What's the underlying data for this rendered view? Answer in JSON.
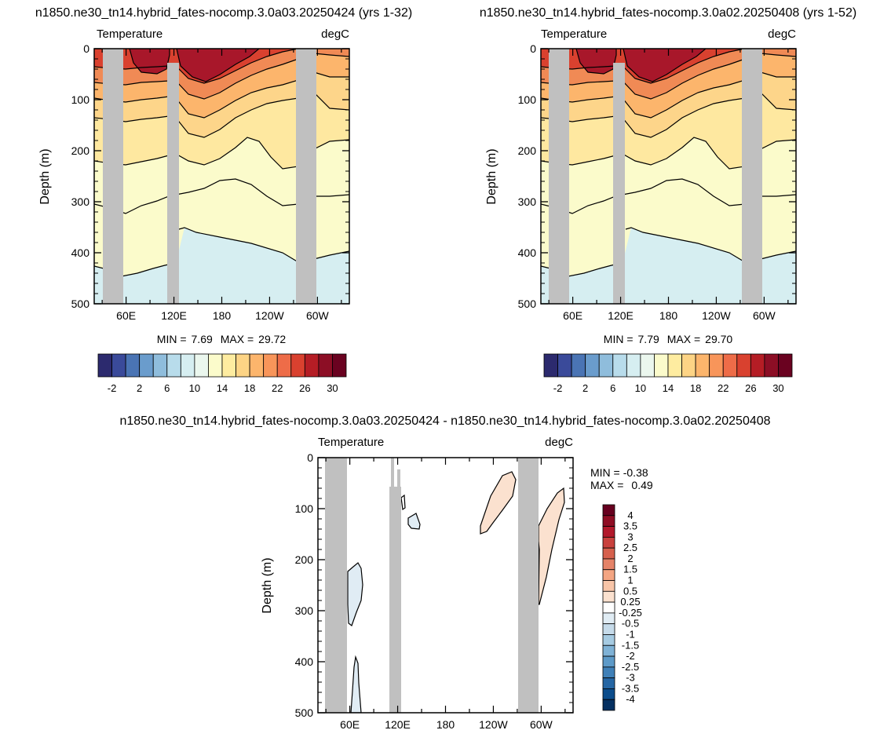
{
  "chart_data": [
    {
      "type": "contour",
      "title": "n1850.ne30_tn14.hybrid_fates-nocomp.3.0a03.20250424 (yrs 1-32)",
      "left_label": "Temperature",
      "right_label": "degC",
      "ylabel": "Depth (m)",
      "y_ticks": [
        "0",
        "100",
        "200",
        "300",
        "400",
        "500"
      ],
      "x_ticks": [
        "60E",
        "120E",
        "180",
        "120W",
        "60W"
      ],
      "ylim": [
        0,
        500
      ],
      "min_label": "MIN =",
      "min_value": "7.69",
      "max_label": "MAX =",
      "max_value": "29.72",
      "colorbar_labels": [
        "-2",
        "2",
        "6",
        "10",
        "14",
        "18",
        "22",
        "26",
        "30"
      ],
      "colorbar_colors": [
        "#2c2a6e",
        "#3a4a9a",
        "#4a74b4",
        "#6a9ccc",
        "#8fbddc",
        "#b8dceb",
        "#d6eef1",
        "#ebf7ee",
        "#fbfbcb",
        "#feeca0",
        "#fdd485",
        "#fcb56c",
        "#f8955a",
        "#ee6c48",
        "#d9412f",
        "#b51d25",
        "#8c0e25",
        "#6a0220"
      ]
    },
    {
      "type": "contour",
      "title": "n1850.ne30_tn14.hybrid_fates-nocomp.3.0a02.20250408 (yrs 1-52)",
      "left_label": "Temperature",
      "right_label": "degC",
      "ylabel": "Depth (m)",
      "y_ticks": [
        "0",
        "100",
        "200",
        "300",
        "400",
        "500"
      ],
      "x_ticks": [
        "60E",
        "120E",
        "180",
        "120W",
        "60W"
      ],
      "ylim": [
        0,
        500
      ],
      "min_label": "MIN =",
      "min_value": "7.79",
      "max_label": "MAX =",
      "max_value": "29.70",
      "colorbar_labels": [
        "-2",
        "2",
        "6",
        "10",
        "14",
        "18",
        "22",
        "26",
        "30"
      ],
      "colorbar_colors": [
        "#2c2a6e",
        "#3a4a9a",
        "#4a74b4",
        "#6a9ccc",
        "#8fbddc",
        "#b8dceb",
        "#d6eef1",
        "#ebf7ee",
        "#fbfbcb",
        "#feeca0",
        "#fdd485",
        "#fcb56c",
        "#f8955a",
        "#ee6c48",
        "#d9412f",
        "#b51d25",
        "#8c0e25",
        "#6a0220"
      ]
    },
    {
      "type": "contour",
      "title": "n1850.ne30_tn14.hybrid_fates-nocomp.3.0a03.20250424 - n1850.ne30_tn14.hybrid_fates-nocomp.3.0a02.20250408",
      "left_label": "Temperature",
      "right_label": "degC",
      "ylabel": "Depth (m)",
      "y_ticks": [
        "0",
        "100",
        "200",
        "300",
        "400",
        "500"
      ],
      "x_ticks": [
        "60E",
        "120E",
        "180",
        "120W",
        "60W"
      ],
      "ylim": [
        0,
        500
      ],
      "min_label": "MIN =",
      "min_value": "-0.38",
      "max_label": "MAX =",
      "max_value": "0.49",
      "colorbar_labels": [
        "4",
        "3.5",
        "3",
        "2.5",
        "2",
        "1.5",
        "1",
        "0.5",
        "0.25",
        "-0.25",
        "-0.5",
        "-1",
        "-1.5",
        "-2",
        "-2.5",
        "-3",
        "-3.5",
        "-4"
      ],
      "colorbar_colors": [
        "#67001f",
        "#8f0d24",
        "#b2182b",
        "#c9413d",
        "#d6604d",
        "#e58368",
        "#f4a582",
        "#f8c5a8",
        "#fbe1cf",
        "#ffffff",
        "#e0ecf4",
        "#c6dbea",
        "#a6cbe2",
        "#7fb2d6",
        "#5d9ac8",
        "#3f80b8",
        "#2566a4",
        "#0c4d8c",
        "#053061"
      ]
    }
  ]
}
